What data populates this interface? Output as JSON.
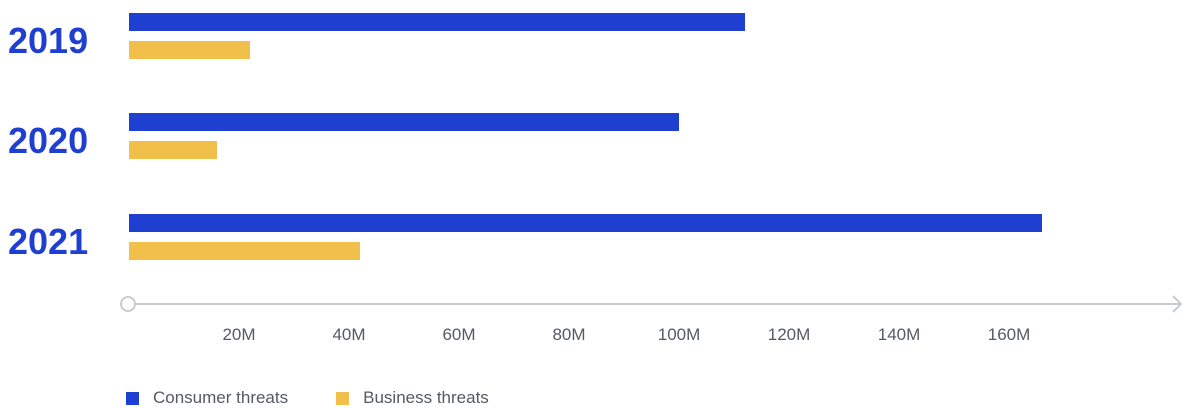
{
  "colors": {
    "consumer": "#1f3fd0",
    "business": "#f0c04a",
    "year_text": "#1f3fd0",
    "axis": "#c8cbd0",
    "tick_text": "#555a62"
  },
  "chart_data": {
    "type": "bar",
    "orientation": "horizontal",
    "categories": [
      "2019",
      "2020",
      "2021"
    ],
    "series": [
      {
        "name": "Consumer threats",
        "values": [
          112,
          100,
          166
        ]
      },
      {
        "name": "Business threats",
        "values": [
          22,
          16,
          42
        ]
      }
    ],
    "x_ticks": [
      "20M",
      "40M",
      "60M",
      "80M",
      "100M",
      "120M",
      "140M",
      "160M"
    ],
    "x_tick_values": [
      20,
      40,
      60,
      80,
      100,
      120,
      140,
      160
    ],
    "xlim": [
      0,
      170
    ],
    "unit": "M",
    "grid": false,
    "legend_position": "bottom-left"
  }
}
